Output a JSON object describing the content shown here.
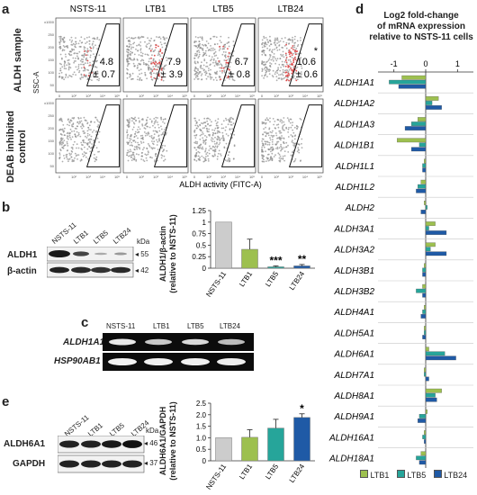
{
  "panel_labels": [
    "a",
    "b",
    "c",
    "d",
    "e"
  ],
  "panel_a": {
    "columns": [
      "NSTS-11",
      "LTB1",
      "LTB5",
      "LTB24"
    ],
    "row_labels": [
      "ALDH sample",
      "DEAB inhibited control"
    ],
    "y_axis_label": "SSC-A",
    "y_ticks": [
      "x1000",
      "250",
      "200",
      "150",
      "100",
      "50"
    ],
    "x_ticks": [
      "0",
      "10²",
      "10³",
      "10⁴",
      "10⁵"
    ],
    "x_axis_label": "ALDH activity (FITC-A)",
    "percentages": [
      {
        "value": "4.8",
        "sd": "± 0.7",
        "mark": ""
      },
      {
        "value": "7.9",
        "sd": "± 3.9",
        "mark": ""
      },
      {
        "value": "6.7",
        "sd": "± 0.8",
        "mark": ""
      },
      {
        "value": "10.6",
        "sd": "± 0.6",
        "mark": "*"
      }
    ],
    "colors": {
      "dots": "#8a8a8a",
      "positive_dots": "#e05050"
    }
  },
  "panel_b": {
    "lanes": [
      "NSTS-11",
      "LTB1",
      "LTB5",
      "LTB24"
    ],
    "bands": [
      "ALDH1",
      "β-actin"
    ],
    "kda_label": "kDa",
    "markers": [
      "◂ 55",
      "◂ 42"
    ],
    "chart_data": {
      "type": "bar",
      "categories": [
        "NSTS-11",
        "LTB1",
        "LTB5",
        "LTB24"
      ],
      "values": [
        1.0,
        0.41,
        0.03,
        0.05
      ],
      "errors": [
        0,
        0.22,
        0.02,
        0.03
      ],
      "significance": [
        "",
        "",
        "***",
        "**"
      ],
      "ylabel_line1": "ALDH1/β-actin",
      "ylabel_line2": "(relative to NSTS-11)",
      "ylim": [
        0,
        1.25
      ],
      "yticks": [
        "0",
        "0.25",
        "0.5",
        "0.75",
        "1",
        "1.25"
      ],
      "colors": [
        "#cccccc",
        "#9dc04f",
        "#26a59a",
        "#1f5aa6"
      ]
    }
  },
  "panel_c": {
    "lanes": [
      "NSTS-11",
      "LTB1",
      "LTB5",
      "LTB24"
    ],
    "genes": [
      "ALDH1A1",
      "HSP90AB1"
    ]
  },
  "panel_d": {
    "title_lines": [
      "Log2 fold-change",
      "of mRNA expression",
      "relative to NSTS-11 cells"
    ],
    "chart_data": {
      "type": "bar",
      "orientation": "horizontal",
      "xlim": [
        -1.5,
        1.5
      ],
      "xticks": [
        "-1",
        "0",
        "1"
      ],
      "categories": [
        "ALDH1A1",
        "ALDH1A2",
        "ALDH1A3",
        "ALDH1B1",
        "ALDH1L1",
        "ALDH1L2",
        "ALDH2",
        "ALDH3A1",
        "ALDH3A2",
        "ALDH3B1",
        "ALDH3B2",
        "ALDH4A1",
        "ALDH5A1",
        "ALDH6A1",
        "ALDH7A1",
        "ALDH8A1",
        "ALDH9A1",
        "ALDH16A1",
        "ALDH18A1"
      ],
      "series": [
        {
          "name": "LTB1",
          "color": "#9dc04f",
          "values": [
            -0.75,
            0.4,
            -0.25,
            -0.9,
            -0.05,
            -0.15,
            -0.05,
            0.3,
            0.3,
            -0.05,
            -0.1,
            -0.05,
            -0.05,
            0.1,
            -0.05,
            0.5,
            0.05,
            -0.05,
            -0.15
          ]
        },
        {
          "name": "LTB5",
          "color": "#26a59a",
          "values": [
            -1.15,
            0.2,
            -0.45,
            -0.2,
            -0.1,
            -0.25,
            0.05,
            0.1,
            0.15,
            -0.1,
            -0.3,
            -0.1,
            -0.05,
            0.6,
            -0.05,
            0.3,
            -0.2,
            -0.1,
            -0.3
          ]
        },
        {
          "name": "LTB24",
          "color": "#1f5aa6",
          "values": [
            -0.85,
            0.5,
            -0.65,
            -0.45,
            -0.1,
            -0.3,
            -0.15,
            0.65,
            0.65,
            -0.1,
            -0.1,
            -0.15,
            -0.1,
            0.95,
            0.1,
            0.35,
            -0.25,
            -0.05,
            -0.2
          ]
        }
      ]
    }
  },
  "panel_e": {
    "lanes": [
      "NSTS-11",
      "LTB1",
      "LTB5",
      "LTB24"
    ],
    "bands": [
      "ALDH6A1",
      "GAPDH"
    ],
    "kda_label": "kDa",
    "markers": [
      "◂ 46",
      "◂ 37"
    ],
    "chart_data": {
      "type": "bar",
      "categories": [
        "NSTS-11",
        "LTB1",
        "LTB5",
        "LTB24"
      ],
      "values": [
        1.0,
        1.02,
        1.42,
        1.88
      ],
      "errors": [
        0,
        0.33,
        0.38,
        0.16
      ],
      "significance": [
        "",
        "",
        "",
        "*"
      ],
      "ylabel_line1": "ALDH6A1/GAPDH",
      "ylabel_line2": "(relative to NSTS-11)",
      "ylim": [
        0,
        2.5
      ],
      "yticks": [
        "0",
        "0.5",
        "1.0",
        "1.5",
        "2.0",
        "2.5"
      ],
      "colors": [
        "#cccccc",
        "#9dc04f",
        "#26a59a",
        "#1f5aa6"
      ]
    }
  }
}
